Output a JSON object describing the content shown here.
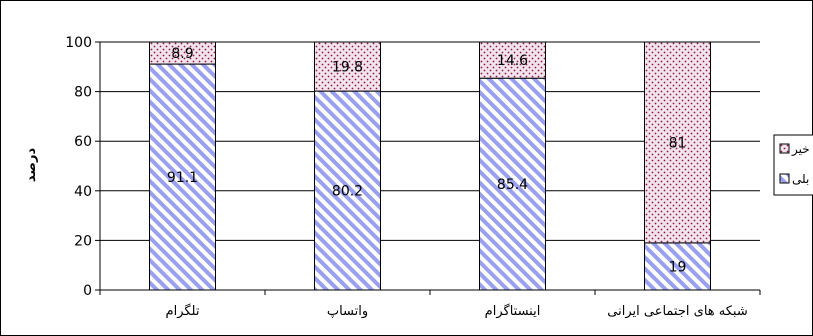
{
  "chart_data": {
    "type": "bar",
    "stacked": true,
    "percent_stacked": true,
    "categories": [
      "تلگرام",
      "واتساپ",
      "اینستاگرام",
      "شبکه های اجتماعی ایرانی"
    ],
    "series": [
      {
        "name": "بلی",
        "values": [
          91.1,
          80.2,
          85.4,
          19
        ],
        "color": "#c8cdf5",
        "pattern": "diagonal-stripes",
        "pattern_color": "#9aa0f0"
      },
      {
        "name": "خیر",
        "values": [
          8.9,
          19.8,
          14.6,
          81
        ],
        "color": "#f2e3ec",
        "pattern": "dots",
        "pattern_color": "#8c1c4c"
      }
    ],
    "data_labels": {
      "بلی": [
        "91.1",
        "80.2",
        "85.4",
        "19"
      ],
      "خیر": [
        "8.9",
        "19.8",
        "14.6",
        "81"
      ]
    },
    "title": "",
    "xlabel": "",
    "ylabel": "درصد",
    "ylim": [
      0,
      100
    ],
    "yticks": [
      "0",
      "20",
      "40",
      "60",
      "80",
      "100"
    ],
    "grid": true,
    "legend": {
      "placement": "right",
      "entries": [
        "خیر",
        "بلی"
      ]
    }
  }
}
